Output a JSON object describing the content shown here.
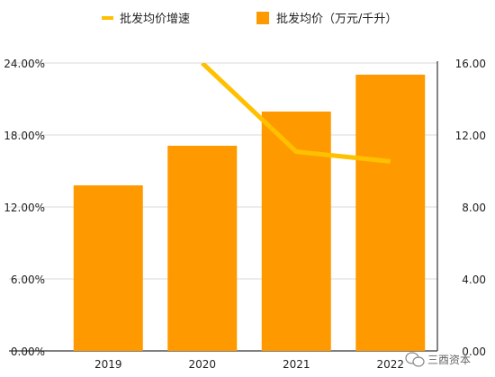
{
  "chart_data": {
    "type": "bar",
    "categories": [
      "2019",
      "2020",
      "2021",
      "2022"
    ],
    "series": [
      {
        "name": "批发均价（万元/千升）",
        "type": "bar",
        "axis": "right",
        "color": "#FF9900",
        "values": [
          9.2,
          11.4,
          13.3,
          15.35
        ]
      },
      {
        "name": "批发均价增速",
        "type": "line",
        "axis": "left",
        "color": "#FFC000",
        "values": [
          null,
          24.0,
          16.6,
          15.8
        ]
      }
    ],
    "y_left": {
      "ylim": [
        0,
        24
      ],
      "ticks": [
        "0.00%",
        "6.00%",
        "12.00%",
        "18.00%",
        "24.00%"
      ]
    },
    "y_right": {
      "ylim": [
        0,
        16
      ],
      "ticks": [
        "0.00",
        "4.00",
        "8.00",
        "12.00",
        "16.00"
      ]
    },
    "grid": true,
    "legend_position": "top"
  },
  "watermark": {
    "text": "三酉资本",
    "icon": "wechat-icon"
  }
}
